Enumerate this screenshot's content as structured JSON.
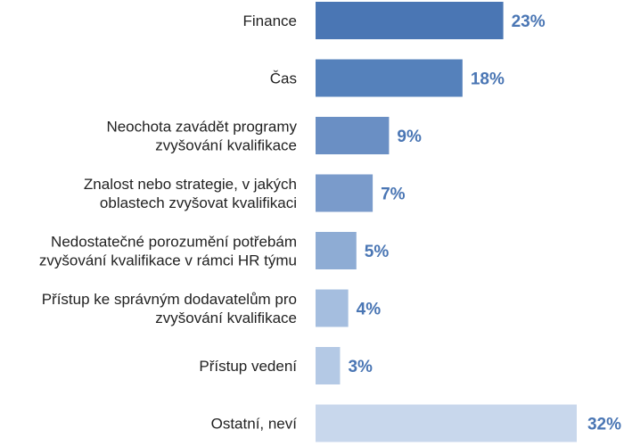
{
  "chart_data": {
    "type": "bar",
    "orientation": "horizontal",
    "categories": [
      [
        "Finance"
      ],
      [
        "Čas"
      ],
      [
        "Neochota zavádět programy",
        "zvyšování kvalifikace"
      ],
      [
        "Znalost nebo strategie, v jakých",
        "oblastech zvyšovat kvalifikaci"
      ],
      [
        "Nedostatečné porozumění potřebám",
        "zvyšování kvalifikace v rámci HR týmu"
      ],
      [
        "Přístup ke správným dodavatelům pro",
        "zvyšování kvalifikace"
      ],
      [
        "Přístup vedení"
      ],
      [
        "Ostatní, neví"
      ]
    ],
    "values": [
      23,
      18,
      9,
      7,
      5,
      4,
      3,
      32
    ],
    "value_labels": [
      "23%",
      "18%",
      "9%",
      "7%",
      "5%",
      "4%",
      "3%",
      "32%"
    ],
    "unit": "%",
    "colors": [
      "#4a76b4",
      "#5581bb",
      "#6a8fc4",
      "#7a9bcb",
      "#8eacd4",
      "#a5bedf",
      "#b4c9e5",
      "#c8d7ec"
    ],
    "value_label_color": "#4a76b4",
    "title": "",
    "xlabel": "",
    "ylabel": "",
    "xlim": [
      0,
      32
    ],
    "grid": false,
    "legend": "none"
  }
}
